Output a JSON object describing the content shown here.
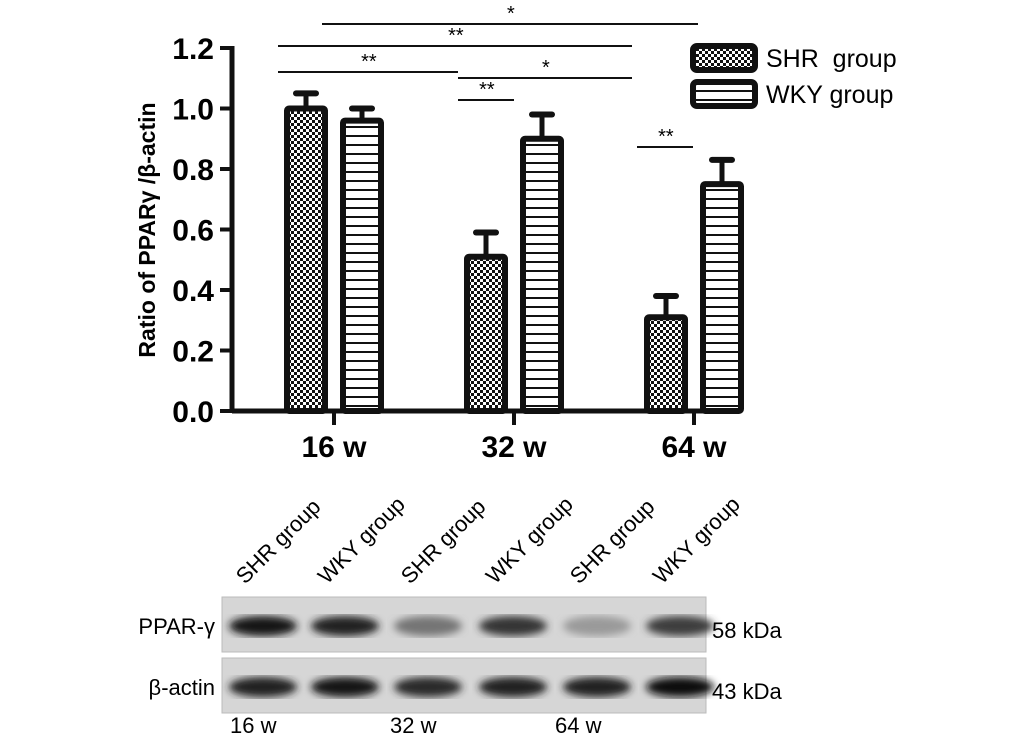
{
  "chart_data": {
    "type": "bar",
    "categories": [
      "16 w",
      "32 w",
      "64 w"
    ],
    "ylabel": "Ratio of PPARγ /β-actin",
    "ylim": [
      0,
      1.2
    ],
    "yticks": [
      "0.0",
      "0.2",
      "0.4",
      "0.6",
      "0.8",
      "1.0",
      "1.2"
    ],
    "grid": false,
    "legend_position": "top-right",
    "series": [
      {
        "name": "SHR  group",
        "pattern": "checker",
        "values": [
          1.0,
          0.51,
          0.31
        ],
        "errors": [
          0.05,
          0.08,
          0.07
        ]
      },
      {
        "name": "WKY group",
        "pattern": "horizontal-stripes",
        "values": [
          0.96,
          0.9,
          0.75
        ],
        "errors": [
          0.04,
          0.08,
          0.08
        ]
      }
    ],
    "significance": [
      {
        "label": "*",
        "from": "SHR 16 w",
        "to": "SHR 64 w"
      },
      {
        "label": "**",
        "from": "SHR 16 w",
        "to": "SHR 64 w"
      },
      {
        "label": "**",
        "from": "SHR 16 w",
        "to": "SHR 32 w"
      },
      {
        "label": "*",
        "from": "SHR 32 w",
        "to": "SHR 64 w"
      },
      {
        "label": "**",
        "from": "SHR 32 w",
        "to": "WKY 32 w"
      },
      {
        "label": "**",
        "from": "SHR 64 w",
        "to": "WKY 64 w"
      }
    ]
  },
  "blot": {
    "lanes": [
      "SHR group",
      "WKY group",
      "SHR group",
      "WKY group",
      "SHR group",
      "WKY group"
    ],
    "rows": [
      {
        "label": "PPAR-γ",
        "size": "58 kDa",
        "intensity": [
          0.95,
          0.9,
          0.45,
          0.8,
          0.25,
          0.75
        ]
      },
      {
        "label": "β-actin",
        "size": "43 kDa",
        "intensity": [
          0.9,
          0.95,
          0.85,
          0.9,
          0.9,
          1.0
        ]
      }
    ],
    "time_labels": [
      "16 w",
      "32 w",
      "64 w"
    ]
  }
}
